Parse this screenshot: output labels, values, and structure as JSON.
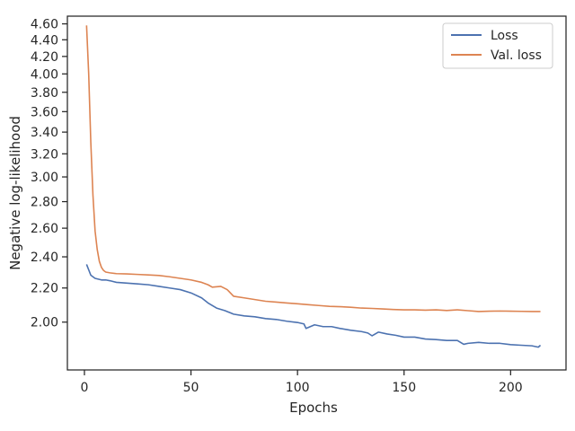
{
  "chart_data": {
    "type": "line",
    "title": "",
    "xlabel": "Epochs",
    "ylabel": "Negative log-likelihood",
    "xlim": [
      -8,
      226
    ],
    "ylim": [
      1.75,
      4.7
    ],
    "y_scale": "log",
    "x_ticks": [
      0,
      50,
      100,
      150,
      200
    ],
    "x_tick_labels": [
      "0",
      "50",
      "100",
      "150",
      "200"
    ],
    "y_ticks": [
      2.0,
      2.2,
      2.4,
      2.6,
      2.8,
      3.0,
      3.2,
      3.4,
      3.6,
      3.8,
      4.0,
      4.2,
      4.4,
      4.6
    ],
    "y_tick_labels": [
      "2.00",
      "2.20",
      "2.40",
      "2.60",
      "2.80",
      "3.00",
      "3.20",
      "3.40",
      "3.60",
      "3.80",
      "4.00",
      "4.20",
      "4.40",
      "4.60"
    ],
    "grid": false,
    "legend_position": "top-right",
    "series": [
      {
        "name": "Loss",
        "color": "#4c72b0",
        "points": [
          [
            1,
            2.35
          ],
          [
            3,
            2.28
          ],
          [
            5,
            2.26
          ],
          [
            8,
            2.25
          ],
          [
            10,
            2.25
          ],
          [
            12,
            2.245
          ],
          [
            15,
            2.235
          ],
          [
            20,
            2.23
          ],
          [
            25,
            2.225
          ],
          [
            30,
            2.22
          ],
          [
            35,
            2.21
          ],
          [
            40,
            2.2
          ],
          [
            45,
            2.19
          ],
          [
            50,
            2.17
          ],
          [
            55,
            2.14
          ],
          [
            58,
            2.11
          ],
          [
            62,
            2.08
          ],
          [
            66,
            2.065
          ],
          [
            70,
            2.045
          ],
          [
            75,
            2.035
          ],
          [
            80,
            2.03
          ],
          [
            85,
            2.02
          ],
          [
            90,
            2.015
          ],
          [
            95,
            2.005
          ],
          [
            100,
            1.998
          ],
          [
            103,
            1.99
          ],
          [
            104,
            1.965
          ],
          [
            108,
            1.985
          ],
          [
            112,
            1.975
          ],
          [
            116,
            1.975
          ],
          [
            120,
            1.965
          ],
          [
            125,
            1.955
          ],
          [
            130,
            1.948
          ],
          [
            133,
            1.94
          ],
          [
            135,
            1.925
          ],
          [
            138,
            1.945
          ],
          [
            142,
            1.935
          ],
          [
            146,
            1.928
          ],
          [
            150,
            1.918
          ],
          [
            155,
            1.918
          ],
          [
            160,
            1.908
          ],
          [
            165,
            1.905
          ],
          [
            170,
            1.9
          ],
          [
            175,
            1.9
          ],
          [
            178,
            1.88
          ],
          [
            180,
            1.885
          ],
          [
            185,
            1.89
          ],
          [
            190,
            1.885
          ],
          [
            195,
            1.885
          ],
          [
            200,
            1.878
          ],
          [
            205,
            1.875
          ],
          [
            210,
            1.872
          ],
          [
            213,
            1.865
          ],
          [
            214,
            1.875
          ]
        ]
      },
      {
        "name": "Val. loss",
        "color": "#dd8452",
        "points": [
          [
            1,
            4.58
          ],
          [
            2,
            4.0
          ],
          [
            3,
            3.3
          ],
          [
            4,
            2.85
          ],
          [
            5,
            2.58
          ],
          [
            6,
            2.45
          ],
          [
            7,
            2.37
          ],
          [
            8,
            2.33
          ],
          [
            9,
            2.31
          ],
          [
            10,
            2.3
          ],
          [
            12,
            2.295
          ],
          [
            15,
            2.29
          ],
          [
            20,
            2.288
          ],
          [
            25,
            2.285
          ],
          [
            30,
            2.282
          ],
          [
            35,
            2.278
          ],
          [
            40,
            2.27
          ],
          [
            45,
            2.26
          ],
          [
            50,
            2.25
          ],
          [
            55,
            2.235
          ],
          [
            58,
            2.22
          ],
          [
            60,
            2.205
          ],
          [
            64,
            2.21
          ],
          [
            67,
            2.19
          ],
          [
            70,
            2.15
          ],
          [
            75,
            2.14
          ],
          [
            80,
            2.13
          ],
          [
            85,
            2.12
          ],
          [
            90,
            2.115
          ],
          [
            95,
            2.11
          ],
          [
            100,
            2.105
          ],
          [
            105,
            2.1
          ],
          [
            110,
            2.095
          ],
          [
            115,
            2.09
          ],
          [
            120,
            2.088
          ],
          [
            125,
            2.085
          ],
          [
            130,
            2.08
          ],
          [
            135,
            2.078
          ],
          [
            140,
            2.075
          ],
          [
            145,
            2.072
          ],
          [
            150,
            2.07
          ],
          [
            155,
            2.07
          ],
          [
            160,
            2.068
          ],
          [
            165,
            2.07
          ],
          [
            170,
            2.066
          ],
          [
            175,
            2.07
          ],
          [
            180,
            2.065
          ],
          [
            185,
            2.06
          ],
          [
            190,
            2.062
          ],
          [
            195,
            2.063
          ],
          [
            200,
            2.062
          ],
          [
            205,
            2.061
          ],
          [
            210,
            2.06
          ],
          [
            214,
            2.06
          ]
        ]
      }
    ]
  }
}
